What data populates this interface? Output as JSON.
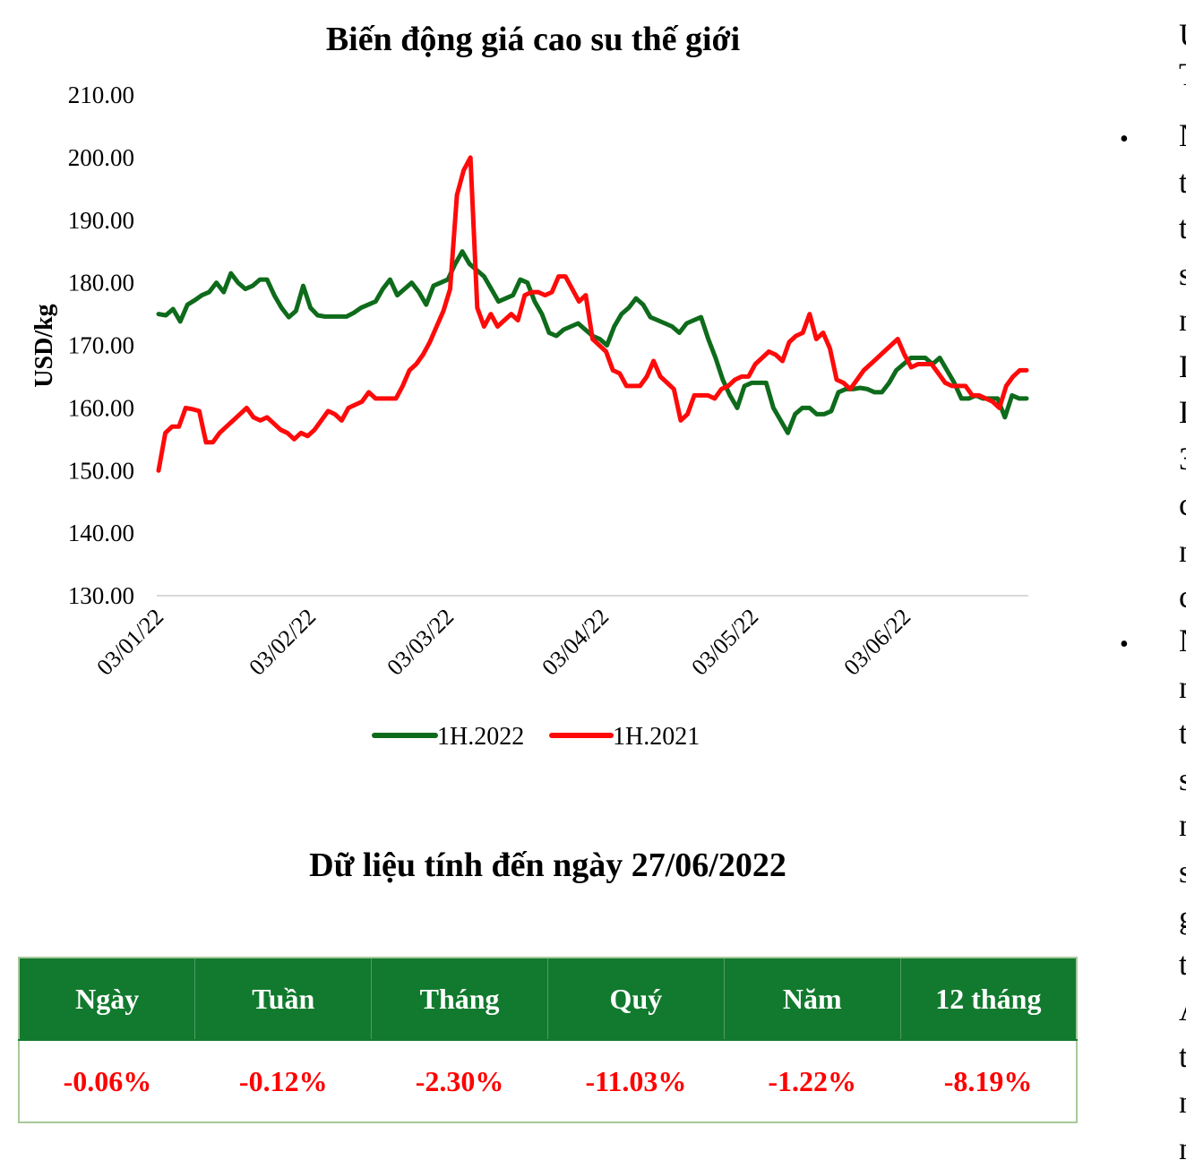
{
  "chart_data": {
    "type": "line",
    "title": "Biến động giá cao su thế giới",
    "ylabel": "USD/kg",
    "xlabel": "",
    "ylim": [
      130,
      210
    ],
    "yticks": [
      "130.00",
      "140.00",
      "150.00",
      "160.00",
      "170.00",
      "180.00",
      "190.00",
      "200.00",
      "210.00"
    ],
    "xticks": [
      "03/01/22",
      "03/02/22",
      "03/03/22",
      "03/04/22",
      "03/05/22",
      "03/06/22"
    ],
    "legend_position": "bottom",
    "series": [
      {
        "name": "1H.2022",
        "color": "#0e6b1b",
        "values": [
          175,
          174.8,
          175.8,
          173.8,
          176.5,
          177.2,
          178,
          178.5,
          180,
          178.5,
          181.5,
          180,
          179,
          179.5,
          180.5,
          180.5,
          178,
          176,
          174.5,
          175.5,
          179.5,
          176,
          174.8,
          174.6,
          174.6,
          174.6,
          174.6,
          175.2,
          176,
          176.5,
          177,
          179,
          180.5,
          178,
          179,
          180,
          178.5,
          176.5,
          179.5,
          180,
          180.5,
          183,
          185,
          183,
          182,
          181,
          179,
          177,
          177.5,
          178,
          180.5,
          180,
          177,
          175,
          172,
          171.5,
          172.5,
          173,
          173.5,
          172.5,
          171.5,
          171,
          170,
          173,
          175,
          176,
          177.5,
          176.5,
          174.5,
          174,
          173.5,
          173,
          172,
          173.5,
          174,
          174.5,
          171,
          168,
          164.5,
          162,
          160,
          163.5,
          164,
          164,
          164,
          160,
          158,
          156,
          159,
          160,
          160,
          159,
          159,
          159.5,
          162.5,
          163,
          163,
          163.2,
          163,
          162.5,
          162.5,
          164,
          166,
          167,
          168,
          168,
          168,
          167,
          168,
          166,
          164,
          161.5,
          161.5,
          162,
          161.5,
          161.5,
          161.5,
          158.5,
          162,
          161.5,
          161.5
        ]
      },
      {
        "name": "1H.2021",
        "color": "#ff0a0a",
        "values": [
          150,
          156,
          157,
          157,
          160,
          159.8,
          159.5,
          154.5,
          154.5,
          156,
          157,
          158,
          159,
          160,
          158.5,
          158,
          158.5,
          157.5,
          156.5,
          156,
          155,
          156,
          155.5,
          156.5,
          158,
          159.5,
          159,
          158,
          160,
          160.5,
          161,
          162.5,
          161.5,
          161.5,
          161.5,
          161.5,
          163.5,
          166,
          167,
          168.5,
          170.5,
          173,
          175.5,
          179,
          194,
          198,
          200,
          176,
          173,
          175,
          173,
          174,
          175,
          174,
          178,
          178.5,
          178.5,
          178,
          178.5,
          181,
          181,
          179,
          177,
          178,
          171,
          170,
          169,
          166,
          165.5,
          163.5,
          163.5,
          163.5,
          165,
          167.5,
          165,
          164,
          163,
          158,
          159,
          162,
          162,
          162,
          161.5,
          163,
          163.5,
          164.5,
          165,
          165,
          167,
          168,
          169,
          168.5,
          167.5,
          170.5,
          171.5,
          172,
          175,
          171,
          172,
          169.5,
          164.5,
          164,
          163,
          164.5,
          166,
          167,
          168,
          169,
          170,
          171,
          168.5,
          166.5,
          167,
          167,
          167,
          165.5,
          164,
          163.5,
          163.5,
          163.5,
          162,
          162,
          161.5,
          161,
          160,
          163.5,
          165,
          166,
          166
        ]
      }
    ]
  },
  "table": {
    "title": "Dữ liệu tính đến ngày 27/06/2022",
    "headers": [
      "Ngày",
      "Tuần",
      "Tháng",
      "Quý",
      "Năm",
      "12 tháng"
    ],
    "values": [
      "-0.06%",
      "-0.12%",
      "-2.30%",
      "-11.03%",
      "-1.22%",
      "-8.19%"
    ],
    "header_bg": "#127a2e",
    "value_color": "#ff0000"
  },
  "right_text": {
    "lines_top": [
      "Ư",
      "T"
    ],
    "bullet1_lines": [
      "N",
      "t",
      "t",
      "s",
      "n",
      "L",
      "L",
      "3",
      "c",
      "n",
      "c"
    ],
    "bullet2_lines": [
      "N",
      "n",
      "t",
      "s",
      "n",
      "s",
      "g",
      "t",
      "A",
      "t",
      "n",
      "n"
    ]
  }
}
